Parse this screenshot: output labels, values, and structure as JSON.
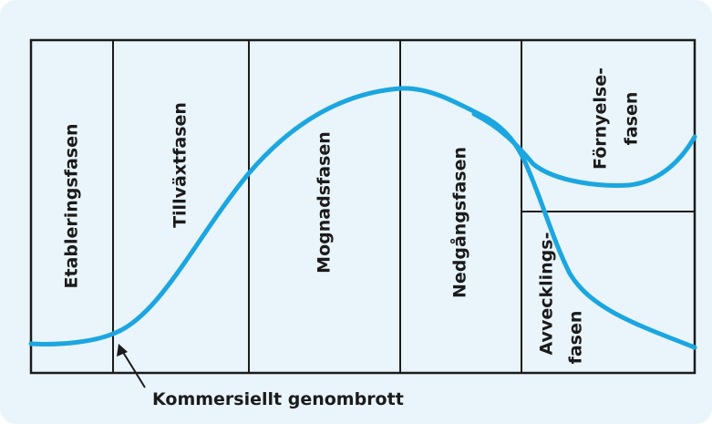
{
  "phases": {
    "etablering": "Etableringsfasen",
    "tillvaxt": "Tillväxtfasen",
    "mognad": "Mognadsfasen",
    "nedgang": "Nedgångsfasen",
    "fornyelse_line1": "Förnyelse-",
    "fornyelse_line2": "fasen",
    "avveckling_line1": "Avvecklings-",
    "avveckling_line2": "fasen"
  },
  "annotation": {
    "label": "Kommersiellt genombrott"
  },
  "colors": {
    "background": "#e9f4fb",
    "curve": "#1ba6e0",
    "lines": "#1b1b1b"
  }
}
